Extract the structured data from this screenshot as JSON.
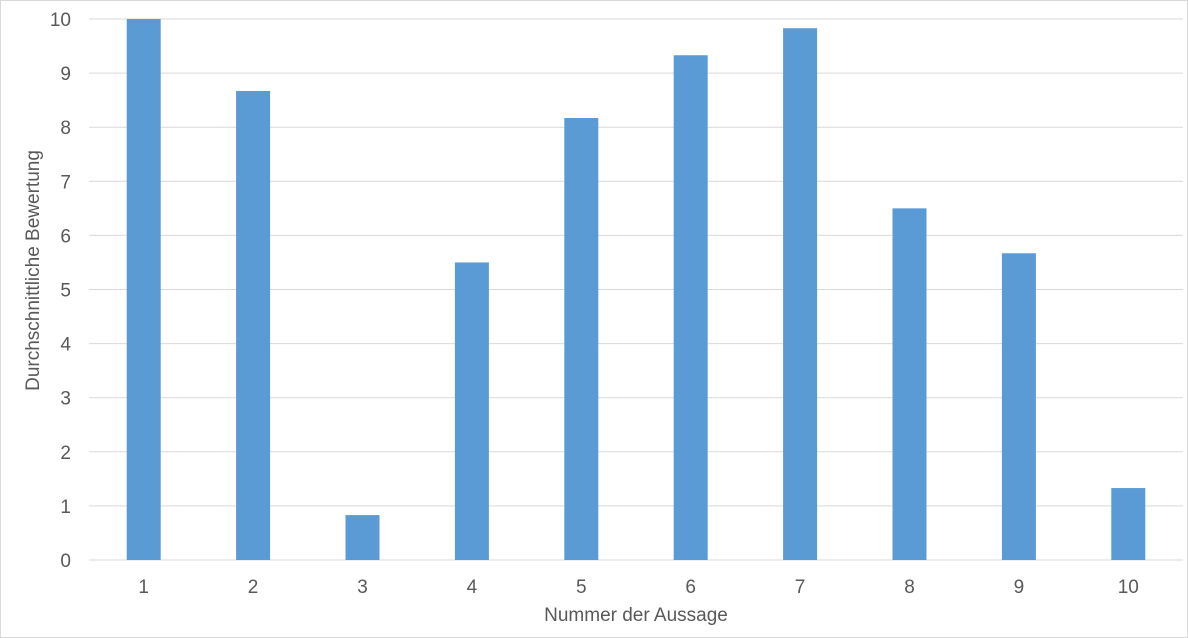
{
  "chart_data": {
    "type": "bar",
    "title": "",
    "xlabel": "Nummer der Aussage",
    "ylabel": "Durchschnittliche Bewertung",
    "categories": [
      "1",
      "2",
      "3",
      "4",
      "5",
      "6",
      "7",
      "8",
      "9",
      "10"
    ],
    "values": [
      10,
      8.67,
      0.83,
      5.5,
      8.17,
      9.33,
      9.83,
      6.5,
      5.67,
      1.33
    ],
    "ylim": [
      0,
      10
    ],
    "yticks": [
      "0",
      "1",
      "2",
      "3",
      "4",
      "5",
      "6",
      "7",
      "8",
      "9",
      "10"
    ],
    "grid": true,
    "legend": "none",
    "bar_color": "#5b9bd5",
    "grid_color": "#d9d9d9",
    "text_color": "#595959"
  }
}
